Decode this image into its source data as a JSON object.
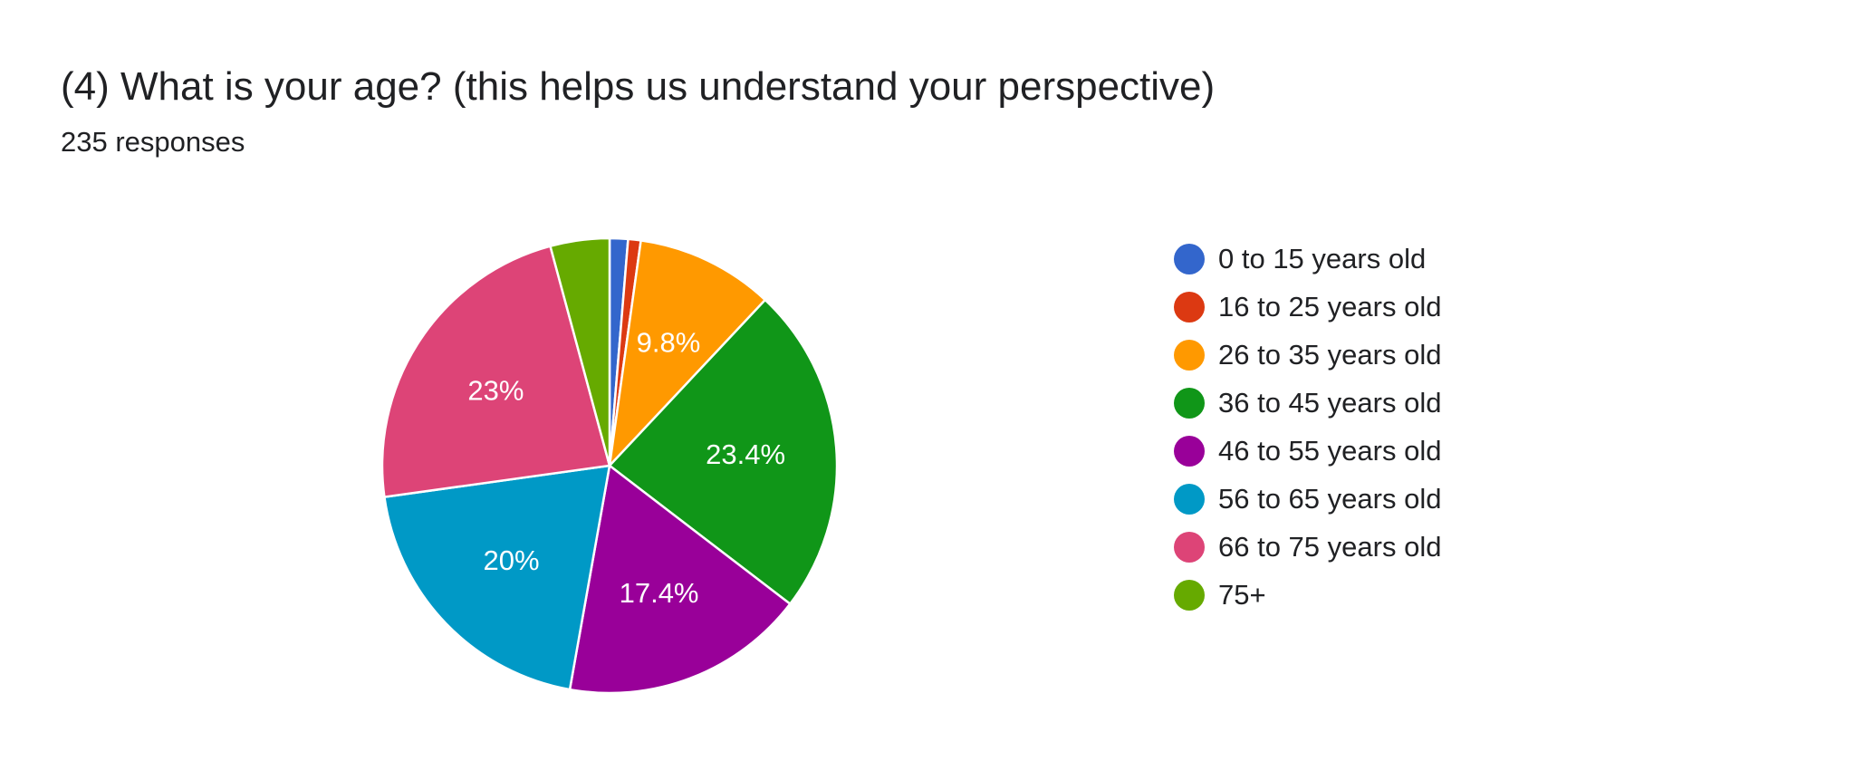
{
  "question": {
    "title": "(4) What is your age? (this helps us understand your perspective)",
    "responses": "235 responses"
  },
  "chart_data": {
    "type": "pie",
    "start_angle_deg": 90,
    "direction": "clockwise",
    "slices": [
      {
        "label": "0 to 15 years old",
        "value": 1.3,
        "color": "#3366cc",
        "shown_label": ""
      },
      {
        "label": "16 to 25 years old",
        "value": 0.9,
        "color": "#dc3912",
        "shown_label": ""
      },
      {
        "label": "26 to 35 years old",
        "value": 9.8,
        "color": "#ff9900",
        "shown_label": "9.8%"
      },
      {
        "label": "36 to 45 years old",
        "value": 23.4,
        "color": "#109618",
        "shown_label": "23.4%"
      },
      {
        "label": "46 to 55 years old",
        "value": 17.4,
        "color": "#990099",
        "shown_label": "17.4%"
      },
      {
        "label": "56 to 65 years old",
        "value": 20,
        "color": "#0099c6",
        "shown_label": "20%"
      },
      {
        "label": "66 to 75 years old",
        "value": 23,
        "color": "#dd4477",
        "shown_label": "23%"
      },
      {
        "label": "75+",
        "value": 4.2,
        "color": "#66aa00",
        "shown_label": ""
      }
    ],
    "legend_position": "right"
  }
}
